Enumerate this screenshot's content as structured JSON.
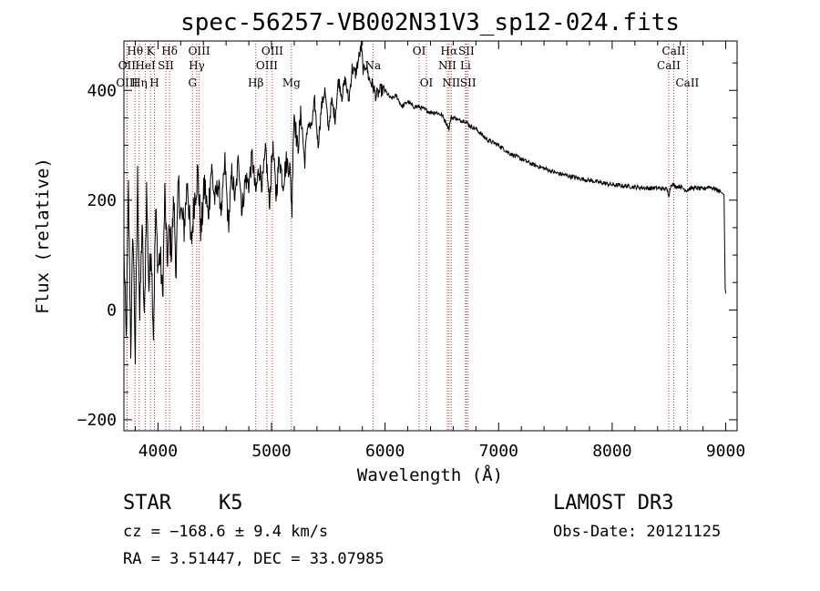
{
  "chart_data": {
    "type": "line",
    "title": "spec-56257-VB002N31V3_sp12-024.fits",
    "xlabel": "Wavelength (Å)",
    "ylabel": "Flux (relative)",
    "xlim": [
      3700,
      9100
    ],
    "ylim": [
      -220,
      490
    ],
    "xticks": [
      4000,
      5000,
      6000,
      7000,
      8000,
      9000
    ],
    "yticks": [
      -200,
      0,
      200,
      400
    ],
    "xtick_labels": [
      "4000",
      "5000",
      "6000",
      "7000",
      "8000",
      "9000"
    ],
    "ytick_labels": [
      "−200",
      "0",
      "200",
      "400"
    ],
    "grid": false,
    "series": [
      {
        "name": "spectrum",
        "x": [
          3700,
          3720,
          3740,
          3760,
          3780,
          3800,
          3820,
          3840,
          3860,
          3880,
          3900,
          3920,
          3940,
          3960,
          3980,
          4000,
          4020,
          4040,
          4060,
          4080,
          4100,
          4120,
          4140,
          4160,
          4180,
          4200,
          4230,
          4260,
          4290,
          4320,
          4350,
          4380,
          4410,
          4440,
          4470,
          4500,
          4530,
          4560,
          4590,
          4620,
          4650,
          4680,
          4710,
          4740,
          4770,
          4800,
          4830,
          4860,
          4890,
          4920,
          4950,
          4980,
          5010,
          5040,
          5070,
          5100,
          5130,
          5160,
          5180,
          5190,
          5200,
          5230,
          5260,
          5290,
          5320,
          5350,
          5380,
          5410,
          5440,
          5470,
          5500,
          5530,
          5560,
          5590,
          5620,
          5650,
          5680,
          5710,
          5740,
          5770,
          5790,
          5810,
          5830,
          5860,
          5890,
          5920,
          5960,
          6000,
          6050,
          6100,
          6150,
          6200,
          6250,
          6300,
          6350,
          6400,
          6450,
          6500,
          6540,
          6563,
          6580,
          6620,
          6650,
          6700,
          6750,
          6800,
          6900,
          7000,
          7100,
          7200,
          7300,
          7400,
          7500,
          7600,
          7700,
          7800,
          7900,
          8000,
          8100,
          8200,
          8300,
          8400,
          8480,
          8500,
          8520,
          8560,
          8600,
          8650,
          8700,
          8750,
          8800,
          8850,
          8900,
          8950,
          8985,
          8995,
          9000
        ],
        "values": [
          110,
          -60,
          220,
          -70,
          150,
          -90,
          240,
          -20,
          160,
          -30,
          220,
          40,
          120,
          -40,
          180,
          80,
          100,
          20,
          210,
          90,
          140,
          110,
          200,
          70,
          230,
          180,
          150,
          240,
          110,
          200,
          250,
          140,
          230,
          170,
          260,
          200,
          230,
          180,
          270,
          150,
          250,
          200,
          280,
          180,
          240,
          230,
          280,
          210,
          260,
          230,
          290,
          190,
          300,
          210,
          280,
          230,
          270,
          260,
          180,
          310,
          360,
          290,
          360,
          270,
          340,
          330,
          380,
          300,
          370,
          400,
          330,
          380,
          350,
          420,
          390,
          420,
          380,
          440,
          430,
          460,
          480,
          430,
          450,
          420,
          410,
          390,
          400,
          400,
          385,
          390,
          370,
          380,
          370,
          370,
          365,
          360,
          360,
          355,
          340,
          330,
          350,
          350,
          345,
          345,
          335,
          330,
          310,
          300,
          285,
          275,
          265,
          258,
          250,
          245,
          240,
          236,
          232,
          228,
          226,
          224,
          222,
          222,
          220,
          210,
          230,
          225,
          225,
          218,
          222,
          222,
          220,
          225,
          221,
          216,
          210,
          40,
          30
        ]
      }
    ],
    "spectral_lines": [
      {
        "label": "Hθ",
        "wavelength": 3798,
        "row": 1
      },
      {
        "label": "OII",
        "wavelength": 3727,
        "row": 2
      },
      {
        "label": "OIII",
        "wavelength": 3727,
        "row": 3
      },
      {
        "label": "K",
        "wavelength": 3934,
        "row": 1
      },
      {
        "label": "HeI",
        "wavelength": 3889,
        "row": 2
      },
      {
        "label": "Hη",
        "wavelength": 3835,
        "row": 3
      },
      {
        "label": "H",
        "wavelength": 3969,
        "row": 3
      },
      {
        "label": "Hδ",
        "wavelength": 4102,
        "row": 1
      },
      {
        "label": "SII",
        "wavelength": 4069,
        "row": 2
      },
      {
        "label": "OIII",
        "wavelength": 4363,
        "row": 1
      },
      {
        "label": "Hγ",
        "wavelength": 4341,
        "row": 2
      },
      {
        "label": "G",
        "wavelength": 4304,
        "row": 3
      },
      {
        "label": "Hβ",
        "wavelength": 4861,
        "row": 3
      },
      {
        "label": "OIII",
        "wavelength": 5007,
        "row": 1
      },
      {
        "label": "OIII",
        "wavelength": 4959,
        "row": 2
      },
      {
        "label": "Mg",
        "wavelength": 5175,
        "row": 3
      },
      {
        "label": "Na",
        "wavelength": 5893,
        "row": 2
      },
      {
        "label": "OI",
        "wavelength": 6300,
        "row": 1
      },
      {
        "label": "OI",
        "wavelength": 6364,
        "row": 3
      },
      {
        "label": "Hα",
        "wavelength": 6563,
        "row": 1
      },
      {
        "label": "NII",
        "wavelength": 6548,
        "row": 2
      },
      {
        "label": "NII",
        "wavelength": 6583,
        "row": 3
      },
      {
        "label": "SII",
        "wavelength": 6716,
        "row": 1
      },
      {
        "label": "Li",
        "wavelength": 6708,
        "row": 2
      },
      {
        "label": "SII",
        "wavelength": 6731,
        "row": 3
      },
      {
        "label": "CaII",
        "wavelength": 8542,
        "row": 1
      },
      {
        "label": "CaII",
        "wavelength": 8498,
        "row": 2
      },
      {
        "label": "CaII",
        "wavelength": 8662,
        "row": 3
      }
    ]
  },
  "info": {
    "class_label": "STAR",
    "subclass": "K5",
    "survey": "LAMOST DR3",
    "cz_line": "cz = −168.6 ± 9.4 km/s",
    "obs_date_line": "Obs-Date: 20121125",
    "coords_line": "RA =   3.51447, DEC =  33.07985"
  }
}
